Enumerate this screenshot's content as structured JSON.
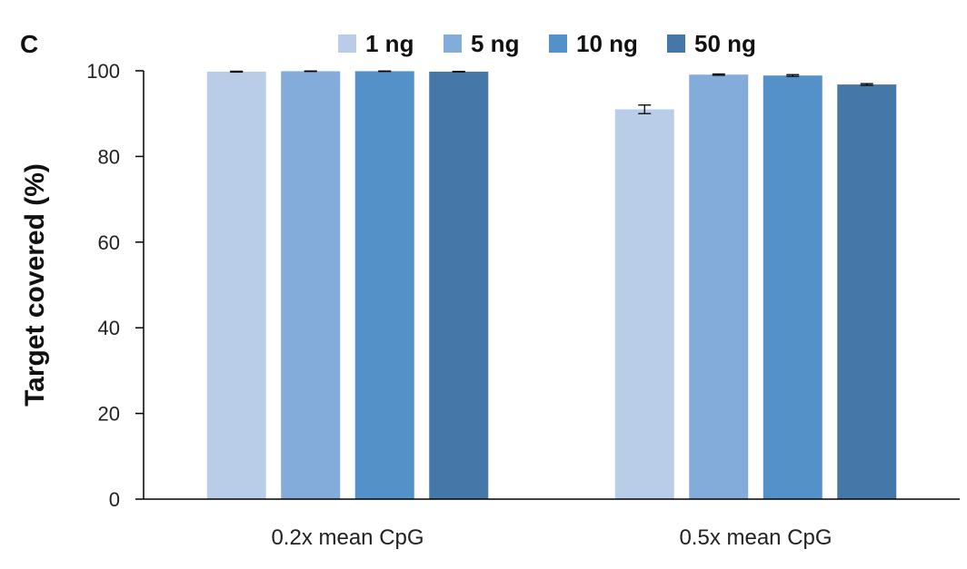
{
  "panel_label": "C",
  "chart_data": {
    "type": "bar",
    "categories": [
      "0.2x mean CpG",
      "0.5x mean CpG"
    ],
    "series": [
      {
        "name": "1 ng",
        "color": "#b9cde8",
        "values": [
          99.8,
          91.0
        ],
        "errors": [
          0.1,
          1.0
        ]
      },
      {
        "name": "5 ng",
        "color": "#84acda",
        "values": [
          99.9,
          99.1
        ],
        "errors": [
          0.05,
          0.15
        ]
      },
      {
        "name": "10 ng",
        "color": "#5491c8",
        "values": [
          99.9,
          98.9
        ],
        "errors": [
          0.05,
          0.2
        ]
      },
      {
        "name": "50 ng",
        "color": "#4577a8",
        "values": [
          99.8,
          96.8
        ],
        "errors": [
          0.05,
          0.2
        ]
      }
    ],
    "ylabel": "Target covered (%)",
    "xlabel": "",
    "ylim": [
      0,
      100
    ],
    "yticks": [
      0,
      20,
      40,
      60,
      80,
      100
    ],
    "legend_position": "top",
    "grid": false
  }
}
